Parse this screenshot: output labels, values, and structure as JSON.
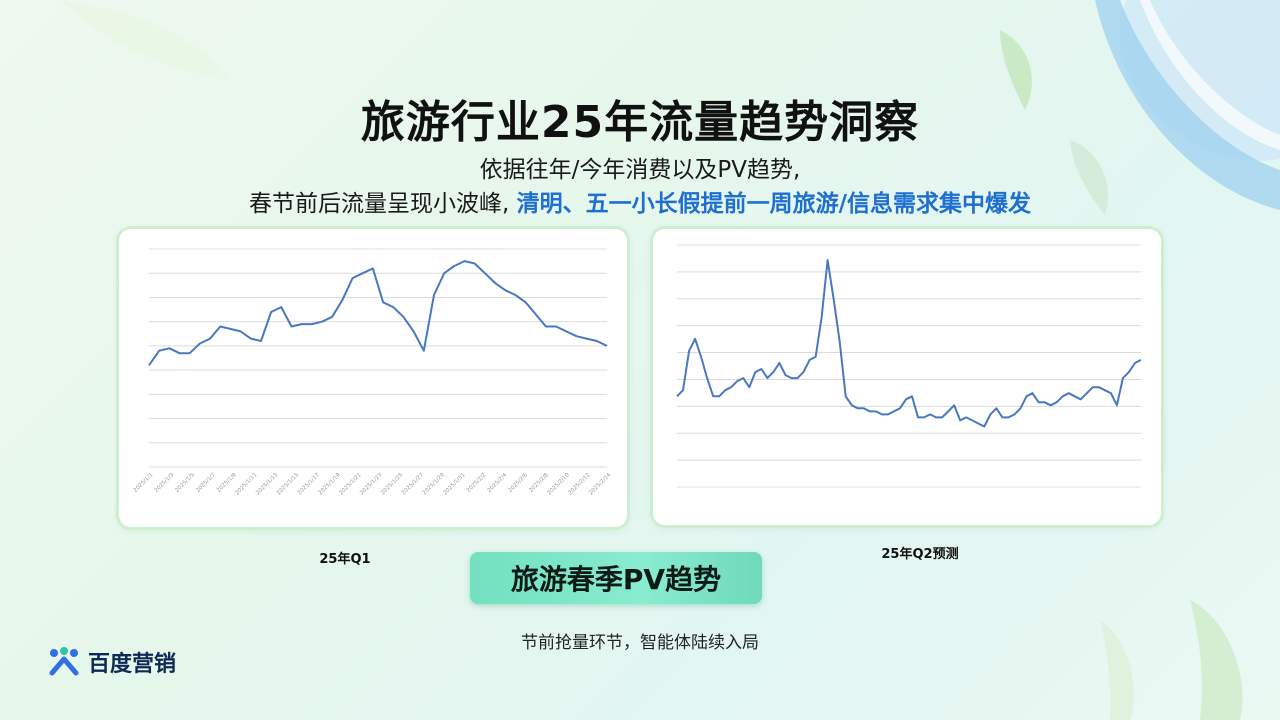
{
  "title": "旅游行业25年流量趋势洞察",
  "subtitle_line1": "依据往年/今年消费以及PV趋势,",
  "subtitle_line2_plain": "春节前后流量呈现小波峰, ",
  "subtitle_line2_highlight": "清明、五一小长假提前一周旅游/信息需求集中爆发",
  "highlight_color": "#1e6fd1",
  "pill_label": "旅游春季PV趋势",
  "footer_text": "节前抢量环节，智能体陆续入局",
  "logo": {
    "text": "百度营销",
    "icon": "baidu-marketing-logo-icon"
  },
  "chart_data": [
    {
      "type": "line",
      "caption": "25年Q1",
      "title": "",
      "xlabel": "",
      "ylabel": "",
      "grid": true,
      "line_color": "#4a78c0",
      "x_tick_labels": [
        "2025/1/1",
        "2025/1/3",
        "2025/1/5",
        "2025/1/7",
        "2025/1/9",
        "2025/1/11",
        "2025/1/13",
        "2025/1/15",
        "2025/1/17",
        "2025/1/19",
        "2025/1/21",
        "2025/1/23",
        "2025/1/25",
        "2025/1/27",
        "2025/1/29",
        "2025/1/31",
        "2025/2/2",
        "2025/2/4",
        "2025/2/6",
        "2025/2/8",
        "2025/2/10",
        "2025/2/12",
        "2025/2/14"
      ],
      "ylim": [
        0,
        9
      ],
      "values": [
        4.2,
        4.8,
        4.9,
        4.7,
        4.7,
        5.1,
        5.3,
        5.8,
        5.7,
        5.6,
        5.3,
        5.2,
        6.4,
        6.6,
        5.8,
        5.9,
        5.9,
        6.0,
        6.2,
        6.9,
        7.8,
        8.0,
        8.2,
        6.8,
        6.6,
        6.2,
        5.6,
        4.8,
        7.1,
        8.0,
        8.3,
        8.5,
        8.4,
        8.0,
        7.6,
        7.3,
        7.1,
        6.8,
        6.3,
        5.8,
        5.8,
        5.6,
        5.4,
        5.3,
        5.2,
        5.0
      ]
    },
    {
      "type": "line",
      "caption": "25年Q2预测",
      "title": "",
      "xlabel": "",
      "ylabel": "",
      "grid": true,
      "line_color": "#4a78c0",
      "ylim": [
        0,
        8
      ],
      "values": [
        3.0,
        3.2,
        4.5,
        4.9,
        4.3,
        3.6,
        3.0,
        3.0,
        3.2,
        3.3,
        3.5,
        3.6,
        3.3,
        3.8,
        3.9,
        3.6,
        3.8,
        4.1,
        3.7,
        3.6,
        3.6,
        3.8,
        4.2,
        4.3,
        5.6,
        7.5,
        6.2,
        4.8,
        3.0,
        2.7,
        2.6,
        2.6,
        2.5,
        2.5,
        2.4,
        2.4,
        2.5,
        2.6,
        2.9,
        3.0,
        2.3,
        2.3,
        2.4,
        2.3,
        2.3,
        2.5,
        2.7,
        2.2,
        2.3,
        2.2,
        2.1,
        2.0,
        2.4,
        2.6,
        2.3,
        2.3,
        2.4,
        2.6,
        3.0,
        3.1,
        2.8,
        2.8,
        2.7,
        2.8,
        3.0,
        3.1,
        3.0,
        2.9,
        3.1,
        3.3,
        3.3,
        3.2,
        3.1,
        2.7,
        3.6,
        3.8,
        4.1,
        4.2
      ]
    }
  ]
}
